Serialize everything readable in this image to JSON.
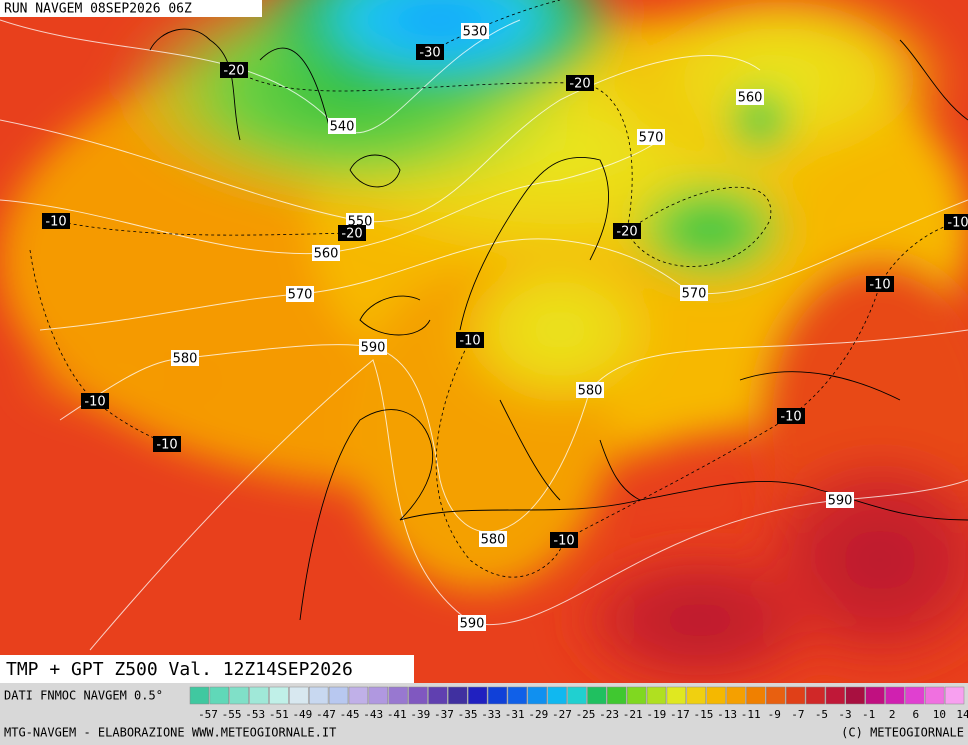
{
  "header": {
    "run": "RUN NAVGEM 08SEP2026 06Z"
  },
  "map": {
    "height_labels": [
      530,
      540,
      550,
      560,
      570,
      580,
      590,
      560,
      570,
      570,
      580,
      590,
      580,
      590
    ],
    "temperature_labels": [
      -30,
      -20,
      -20,
      -10,
      -20,
      -20,
      -10,
      -10,
      -10,
      -10,
      -10,
      -10,
      -10
    ]
  },
  "footer": {
    "title": "TMP + GPT Z500 Val. 12Z14SEP2026",
    "source": "DATI FNMOC NAVGEM 0.5°",
    "credit": "MTG-NAVGEM - ELABORAZIONE WWW.METEOGIORNALE.IT",
    "copyright": "(C) METEOGIORNALE"
  },
  "legend": {
    "labels": [
      -57,
      -55,
      -53,
      -51,
      -49,
      -47,
      -45,
      -43,
      -41,
      -39,
      -37,
      -35,
      -33,
      -31,
      -29,
      -27,
      -25,
      -23,
      -21,
      -19,
      -17,
      -15,
      -13,
      -11,
      -9,
      -7,
      -5,
      -3,
      -1,
      2,
      6,
      10,
      14
    ]
  }
}
